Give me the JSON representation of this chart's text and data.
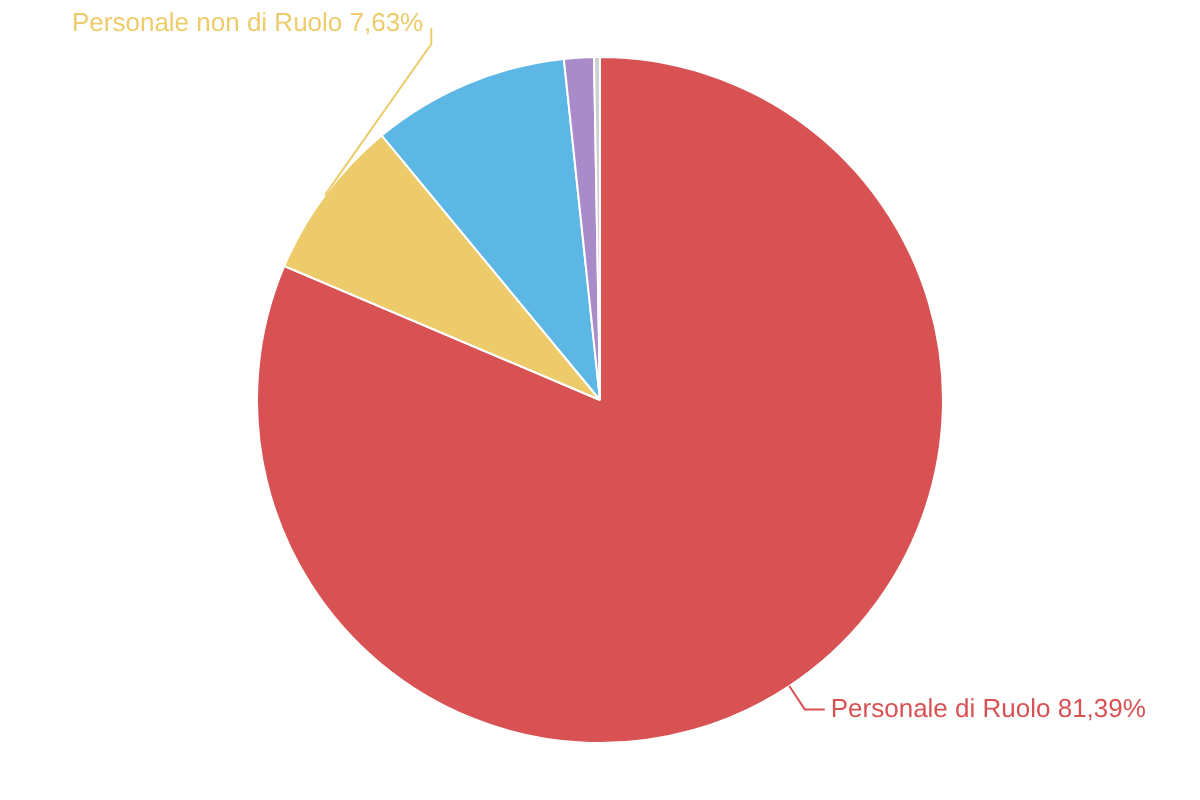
{
  "chart_data": {
    "type": "pie",
    "categories": [
      "Personale di Ruolo",
      "Personale non di Ruolo",
      null,
      null,
      null
    ],
    "values": [
      81.39,
      7.63,
      9.3,
      1.4,
      0.28
    ],
    "colors": [
      "#d95253",
      "#eecb6a",
      "#5db7e4",
      "#a98bc9",
      "#d0d0d0"
    ],
    "value_labels": [
      "81,39%",
      "7,63%",
      null,
      null,
      null
    ],
    "legend": false
  }
}
